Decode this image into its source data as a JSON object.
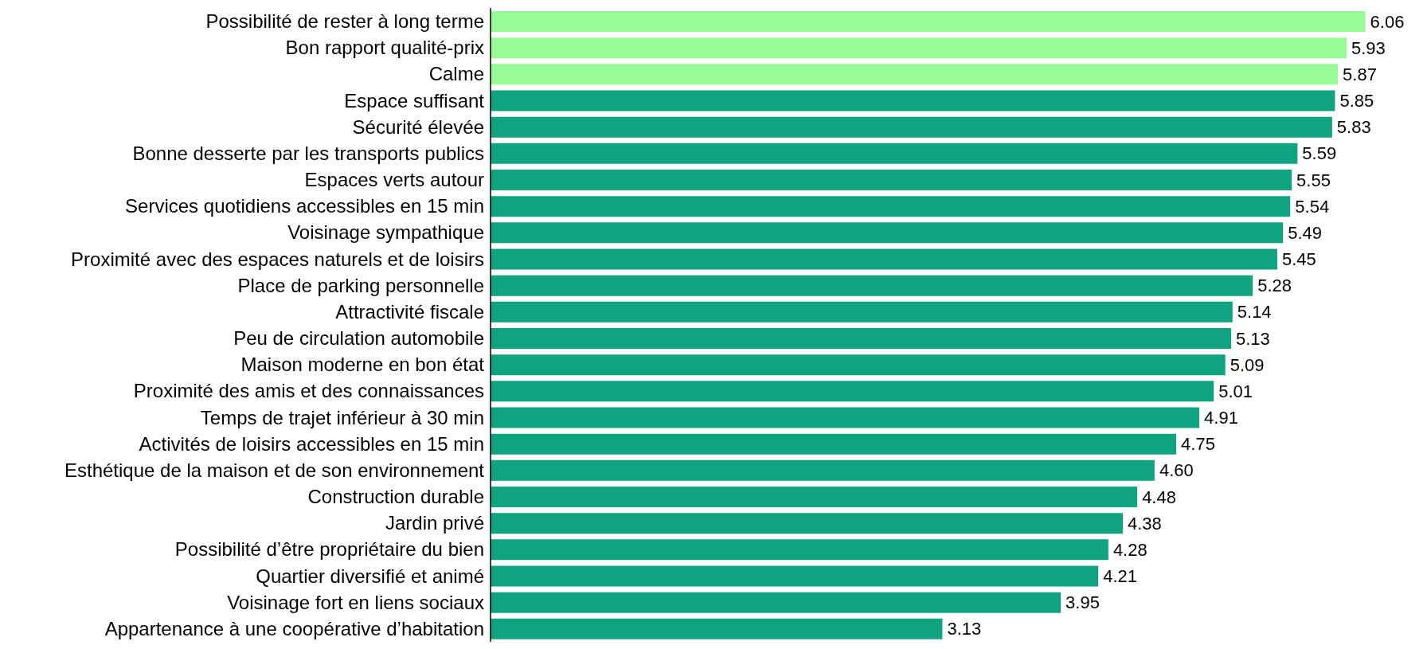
{
  "chart_data": {
    "type": "bar",
    "orientation": "horizontal",
    "grid": false,
    "legend": false,
    "categories": [
      "Possibilité de rester à long terme",
      "Bon rapport qualité-prix",
      "Calme",
      "Espace suffisant",
      "Sécurité élevée",
      "Bonne desserte par les transports publics",
      "Espaces verts autour",
      "Services quotidiens accessibles en 15 min",
      "Voisinage sympathique",
      "Proximité avec des espaces naturels et de loisirs",
      "Place de parking personnelle",
      "Attractivité fiscale",
      "Peu de circulation automobile",
      "Maison moderne en bon état",
      "Proximité des amis et des connaissances",
      "Temps de trajet inférieur à 30 min",
      "Activités de loisirs accessibles en 15 min",
      "Esthétique de la maison et de son environnement",
      "Construction durable",
      "Jardin privé",
      "Possibilité d’être propriétaire du bien",
      "Quartier diversifié et animé",
      "Voisinage fort en liens sociaux",
      "Appartenance à une coopérative d’habitation"
    ],
    "values": [
      6.06,
      5.93,
      5.87,
      5.85,
      5.83,
      5.59,
      5.55,
      5.54,
      5.49,
      5.45,
      5.28,
      5.14,
      5.13,
      5.09,
      5.01,
      4.91,
      4.75,
      4.6,
      4.48,
      4.38,
      4.28,
      4.21,
      3.95,
      3.13
    ],
    "value_labels": [
      "6.06",
      "5.93",
      "5.87",
      "5.85",
      "5.83",
      "5.59",
      "5.55",
      "5.54",
      "5.49",
      "5.45",
      "5.28",
      "5.14",
      "5.13",
      "5.09",
      "5.01",
      "4.91",
      "4.75",
      "4.60",
      "4.48",
      "4.38",
      "4.28",
      "4.21",
      "3.95",
      "3.13"
    ],
    "colors": [
      "#98fb98",
      "#98fb98",
      "#98fb98",
      "#10a37f",
      "#10a37f",
      "#10a37f",
      "#10a37f",
      "#10a37f",
      "#10a37f",
      "#10a37f",
      "#10a37f",
      "#10a37f",
      "#10a37f",
      "#10a37f",
      "#10a37f",
      "#10a37f",
      "#10a37f",
      "#10a37f",
      "#10a37f",
      "#10a37f",
      "#10a37f",
      "#10a37f",
      "#10a37f",
      "#10a37f"
    ]
  }
}
